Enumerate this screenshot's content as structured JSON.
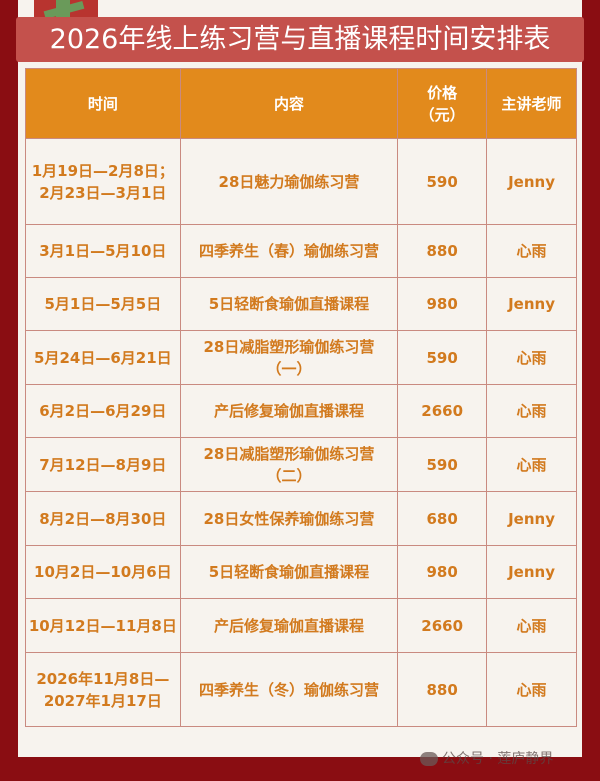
{
  "title": "2026年线上练习营与直播课程时间安排表",
  "colors": {
    "background": "#8a0d12",
    "header": "#e28a1c",
    "text": "#d27a1e",
    "banner": "#c4514c"
  },
  "headers": {
    "time": "时间",
    "content": "内容",
    "price_line1": "价格",
    "price_line2": "（元）",
    "teacher": "主讲老师"
  },
  "rows": [
    {
      "time1": "1月19日—2月8日；",
      "time2": "2月23日—3月1日",
      "content1": "28日魅力瑜伽练习营",
      "content2": "",
      "price": "590",
      "teacher": "Jenny"
    },
    {
      "time1": "3月1日—5月10日",
      "time2": "",
      "content1": "四季养生（春）瑜伽练习营",
      "content2": "",
      "price": "880",
      "teacher": "心雨"
    },
    {
      "time1": "5月1日—5月5日",
      "time2": "",
      "content1": "5日轻断食瑜伽直播课程",
      "content2": "",
      "price": "980",
      "teacher": "Jenny"
    },
    {
      "time1": "5月24日—6月21日",
      "time2": "",
      "content1": "28日减脂塑形瑜伽练习营",
      "content2": "（一）",
      "price": "590",
      "teacher": "心雨"
    },
    {
      "time1": "6月2日—6月29日",
      "time2": "",
      "content1": "产后修复瑜伽直播课程",
      "content2": "",
      "price": "2660",
      "teacher": "心雨"
    },
    {
      "time1": "7月12日—8月9日",
      "time2": "",
      "content1": "28日减脂塑形瑜伽练习营",
      "content2": "（二）",
      "price": "590",
      "teacher": "心雨"
    },
    {
      "time1": "8月2日—8月30日",
      "time2": "",
      "content1": "28日女性保养瑜伽练习营",
      "content2": "",
      "price": "680",
      "teacher": "Jenny"
    },
    {
      "time1": "10月2日—10月6日",
      "time2": "",
      "content1": "5日轻断食瑜伽直播课程",
      "content2": "",
      "price": "980",
      "teacher": "Jenny"
    },
    {
      "time1": "10月12日—11月8日",
      "time2": "",
      "content1": "产后修复瑜伽直播课程",
      "content2": "",
      "price": "2660",
      "teacher": "心雨"
    },
    {
      "time1": "2026年11月8日—",
      "time2": "2027年1月17日",
      "content1": "四季养生（冬）瑜伽练习营",
      "content2": "",
      "price": "880",
      "teacher": "心雨"
    }
  ],
  "watermark": "公众号 · 莲庐静界"
}
